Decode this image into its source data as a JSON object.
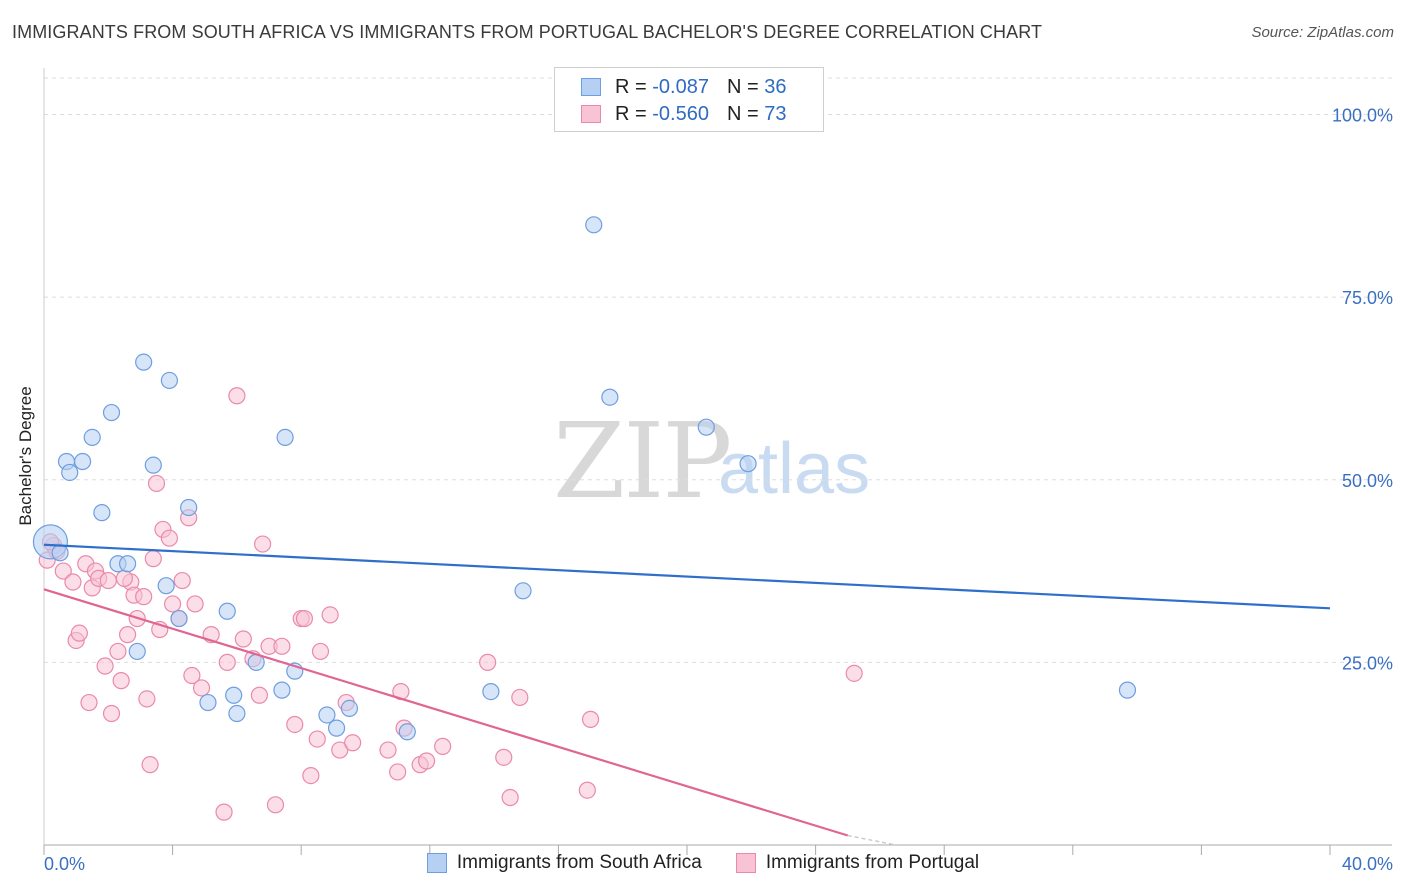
{
  "title": "IMMIGRANTS FROM SOUTH AFRICA VS IMMIGRANTS FROM PORTUGAL BACHELOR'S DEGREE CORRELATION CHART",
  "source": "Source: ZipAtlas.com",
  "watermark": {
    "zip": "ZIP",
    "atlas": "atlas"
  },
  "legend": {
    "rows": [
      {
        "r_label": "R =",
        "r_value": "-0.087",
        "n_label": "N =",
        "n_value": "36"
      },
      {
        "r_label": "R =",
        "r_value": "-0.560",
        "n_label": "N =",
        "n_value": "73"
      }
    ],
    "bottom": [
      "Immigrants from South Africa",
      "Immigrants from Portugal"
    ]
  },
  "colors": {
    "blue_fill": "#b6d0f3",
    "blue_stroke": "#6f9ee0",
    "blue_line": "#2f6fcc",
    "pink_fill": "#f8c3d4",
    "pink_stroke": "#ea8aab",
    "pink_line": "#e06593",
    "grid": "#dddddd",
    "tick_text": "#3a6fc4"
  },
  "chart_data": {
    "type": "scatter",
    "title": "IMMIGRANTS FROM SOUTH AFRICA VS IMMIGRANTS FROM PORTUGAL BACHELOR'S DEGREE CORRELATION CHART",
    "xlabel": "",
    "ylabel": "Bachelor's Degree",
    "xlim": [
      0,
      40
    ],
    "ylim": [
      0,
      105
    ],
    "x_tick_labels": [
      "0.0%",
      "40.0%"
    ],
    "y_ticks": [
      25,
      50,
      75,
      100
    ],
    "y_tick_labels": [
      "25.0%",
      "50.0%",
      "75.0%",
      "100.0%"
    ],
    "series": [
      {
        "name": "Immigrants from South Africa",
        "color": "blue",
        "points": [
          [
            0.2,
            41.5
          ],
          [
            0.7,
            52.5
          ],
          [
            1.2,
            52.5
          ],
          [
            0.8,
            51.0
          ],
          [
            1.5,
            55.8
          ],
          [
            2.1,
            59.2
          ],
          [
            1.8,
            45.5
          ],
          [
            3.1,
            66.1
          ],
          [
            3.9,
            63.6
          ],
          [
            3.4,
            52.0
          ],
          [
            4.5,
            46.2
          ],
          [
            2.3,
            38.5
          ],
          [
            2.6,
            38.5
          ],
          [
            3.8,
            35.5
          ],
          [
            4.2,
            31.0
          ],
          [
            2.9,
            26.5
          ],
          [
            5.7,
            32.0
          ],
          [
            5.1,
            19.5
          ],
          [
            5.9,
            20.5
          ],
          [
            6.0,
            18.0
          ],
          [
            6.6,
            25.0
          ],
          [
            7.4,
            21.2
          ],
          [
            7.5,
            55.8
          ],
          [
            7.8,
            23.8
          ],
          [
            8.8,
            17.8
          ],
          [
            9.1,
            16.0
          ],
          [
            9.5,
            18.7
          ],
          [
            11.3,
            15.5
          ],
          [
            13.9,
            21.0
          ],
          [
            14.9,
            34.8
          ],
          [
            17.1,
            84.9
          ],
          [
            17.6,
            61.3
          ],
          [
            20.6,
            57.2
          ],
          [
            21.9,
            52.2
          ],
          [
            33.7,
            21.2
          ],
          [
            0.5,
            40.0
          ]
        ]
      },
      {
        "name": "Immigrants from Portugal",
        "color": "pink",
        "points": [
          [
            0.1,
            39.0
          ],
          [
            0.3,
            41.0
          ],
          [
            0.4,
            40.2
          ],
          [
            0.6,
            37.5
          ],
          [
            0.9,
            36.0
          ],
          [
            1.0,
            28.0
          ],
          [
            1.1,
            29.0
          ],
          [
            1.3,
            38.5
          ],
          [
            1.4,
            19.5
          ],
          [
            1.5,
            35.2
          ],
          [
            1.6,
            37.5
          ],
          [
            1.7,
            36.5
          ],
          [
            1.9,
            24.5
          ],
          [
            2.0,
            36.2
          ],
          [
            2.1,
            18.0
          ],
          [
            2.3,
            26.5
          ],
          [
            2.4,
            22.5
          ],
          [
            2.6,
            28.8
          ],
          [
            2.7,
            36.0
          ],
          [
            2.8,
            34.2
          ],
          [
            2.9,
            31.0
          ],
          [
            3.1,
            34.0
          ],
          [
            3.2,
            20.0
          ],
          [
            3.3,
            11.0
          ],
          [
            3.4,
            39.2
          ],
          [
            3.5,
            49.5
          ],
          [
            3.6,
            29.5
          ],
          [
            3.7,
            43.2
          ],
          [
            3.9,
            42.0
          ],
          [
            4.0,
            33.0
          ],
          [
            4.2,
            31.0
          ],
          [
            4.3,
            36.2
          ],
          [
            4.5,
            44.8
          ],
          [
            4.6,
            23.2
          ],
          [
            4.7,
            33.0
          ],
          [
            4.9,
            21.5
          ],
          [
            5.2,
            28.8
          ],
          [
            5.6,
            4.5
          ],
          [
            5.7,
            25.0
          ],
          [
            6.0,
            61.5
          ],
          [
            6.2,
            28.2
          ],
          [
            6.5,
            25.5
          ],
          [
            6.7,
            20.5
          ],
          [
            6.8,
            41.2
          ],
          [
            7.0,
            27.2
          ],
          [
            7.2,
            5.5
          ],
          [
            7.4,
            27.2
          ],
          [
            7.8,
            16.5
          ],
          [
            8.0,
            31.0
          ],
          [
            8.1,
            31.0
          ],
          [
            8.3,
            9.5
          ],
          [
            8.5,
            14.5
          ],
          [
            8.6,
            26.5
          ],
          [
            8.9,
            31.5
          ],
          [
            9.2,
            13.0
          ],
          [
            9.4,
            19.5
          ],
          [
            9.6,
            14.0
          ],
          [
            10.7,
            13.0
          ],
          [
            11.0,
            10.0
          ],
          [
            11.1,
            21.0
          ],
          [
            11.2,
            16.0
          ],
          [
            11.7,
            11.0
          ],
          [
            11.9,
            11.5
          ],
          [
            12.4,
            13.5
          ],
          [
            13.8,
            25.0
          ],
          [
            14.3,
            12.0
          ],
          [
            14.5,
            6.5
          ],
          [
            14.8,
            20.2
          ],
          [
            16.9,
            7.5
          ],
          [
            17.0,
            17.2
          ],
          [
            25.2,
            23.5
          ],
          [
            0.2,
            41.5
          ],
          [
            2.5,
            36.5
          ]
        ]
      }
    ],
    "trend_lines": [
      {
        "series": "Immigrants from South Africa",
        "x": [
          0,
          40
        ],
        "y": [
          41.1,
          32.4
        ]
      },
      {
        "series": "Immigrants from Portugal",
        "x": [
          0,
          25.0
        ],
        "y": [
          35.0,
          1.3
        ],
        "dashed_extension_to_x": 26.5
      }
    ]
  }
}
